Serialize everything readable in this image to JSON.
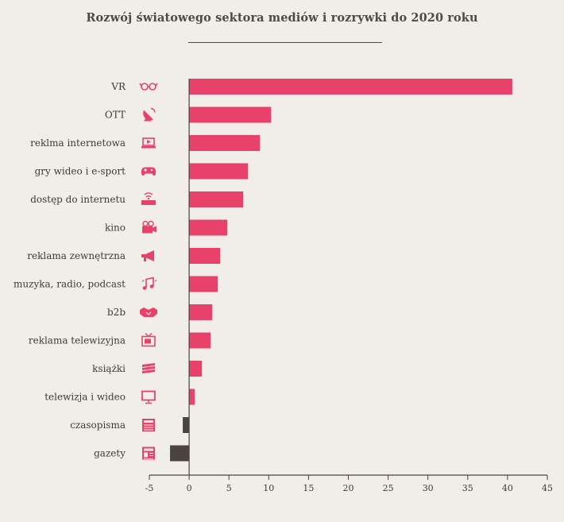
{
  "chart_data": {
    "type": "bar",
    "orientation": "horizontal",
    "title": "Rozwój światowego sektora mediów i rozrywki do 2020 roku",
    "xlim": [
      -5,
      45
    ],
    "x_ticks": [
      "-5",
      "0",
      "5",
      "10",
      "15",
      "20",
      "25",
      "30",
      "35",
      "40",
      "45"
    ],
    "grid": false,
    "categories": [
      "VR",
      "OTT",
      "reklma internetowa",
      "gry wideo i e-sport",
      "dostęp do internetu",
      "kino",
      "reklama zewnętrzna",
      "muzyka, radio, podcast",
      "b2b",
      "reklama telewizyjna",
      "książki",
      "telewizja i wideo",
      "czasopisma",
      "gazety"
    ],
    "icons": [
      "vr-goggles-icon",
      "satellite-dish-icon",
      "laptop-play-icon",
      "gamepad-icon",
      "router-icon",
      "film-camera-icon",
      "megaphone-icon",
      "music-notes-icon",
      "handshake-icon",
      "television-icon",
      "books-icon",
      "monitor-icon",
      "magazine-icon",
      "newspaper-icon"
    ],
    "values": [
      40.6,
      10.3,
      8.9,
      7.4,
      6.8,
      4.8,
      3.9,
      3.6,
      2.9,
      2.7,
      1.6,
      0.7,
      -0.8,
      -2.4
    ],
    "colors": {
      "positive": "#e8416a",
      "negative": "#4a4340",
      "axis": "#4a4340",
      "icon": "#e8416a"
    }
  }
}
